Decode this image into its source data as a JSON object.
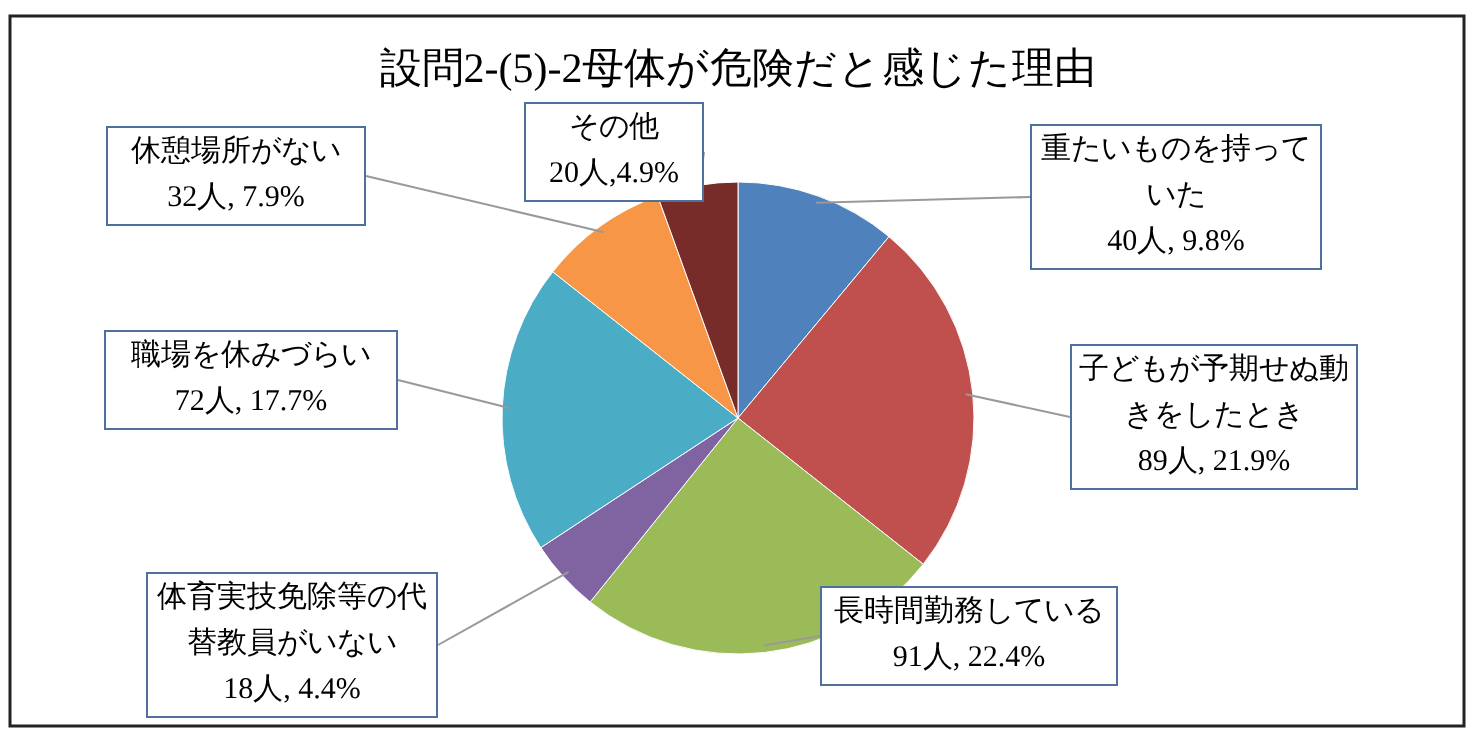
{
  "chart_data": {
    "type": "pie",
    "title": "設問2-(5)-2母体が危険だと感じた理由",
    "categories": [
      "重たいものを持っていた",
      "子どもが予期せぬ動きをしたとき",
      "長時間勤務している",
      "体育実技免除等の代替教員がいない",
      "職場を休みづらい",
      "休憩場所がない",
      "その他"
    ],
    "values": [
      40,
      89,
      91,
      18,
      72,
      32,
      20
    ],
    "value_labels": [
      "40人, 9.8%",
      "89人, 21.9%",
      "91人, 22.4%",
      "18人, 4.4%",
      "72人, 17.7%",
      "32人, 7.9%",
      "20人,4.9%"
    ],
    "colors": [
      "#4f81bd",
      "#c0504d",
      "#9bbb59",
      "#8064a2",
      "#4bacc6",
      "#f79646",
      "#772c2a"
    ]
  }
}
